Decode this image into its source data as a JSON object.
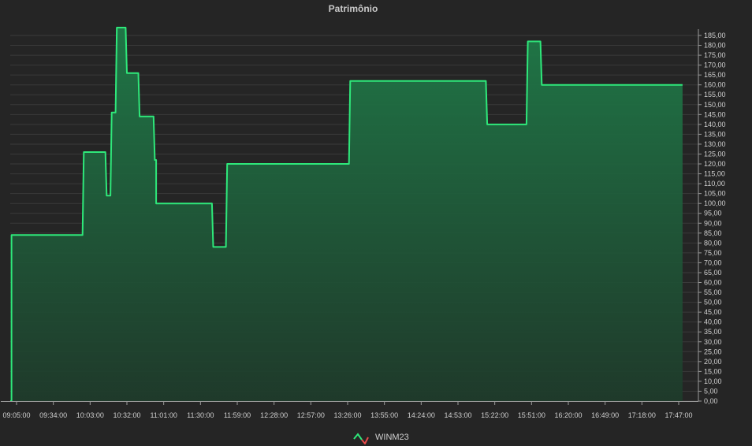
{
  "chart_data": {
    "type": "area",
    "title": "Patrimônio",
    "xlabel": "",
    "ylabel": "",
    "ylim": [
      0,
      185
    ],
    "y_ticks": [
      "0,00",
      "5,00",
      "10,00",
      "15,00",
      "20,00",
      "25,00",
      "30,00",
      "35,00",
      "40,00",
      "45,00",
      "50,00",
      "55,00",
      "60,00",
      "65,00",
      "70,00",
      "75,00",
      "80,00",
      "85,00",
      "90,00",
      "95,00",
      "100,00",
      "105,00",
      "110,00",
      "115,00",
      "120,00",
      "125,00",
      "130,00",
      "135,00",
      "140,00",
      "145,00",
      "150,00",
      "155,00",
      "160,00",
      "165,00",
      "170,00",
      "175,00",
      "180,00",
      "185,00"
    ],
    "x_ticks": [
      "09:05:00",
      "09:34:00",
      "10:03:00",
      "10:32:00",
      "11:01:00",
      "11:30:00",
      "11:59:00",
      "12:28:00",
      "12:57:00",
      "13:26:00",
      "13:55:00",
      "14:24:00",
      "14:53:00",
      "15:22:00",
      "15:51:00",
      "16:20:00",
      "16:49:00",
      "17:18:00",
      "17:47:00"
    ],
    "grid": true,
    "legend_position": "bottom-center",
    "series": [
      {
        "name": "WINM23",
        "color": "#2ee87a",
        "x": [
          "09:05:00",
          "09:06:00",
          "09:06:00",
          "10:02:00",
          "10:03:00",
          "10:20:00",
          "10:21:00",
          "10:24:00",
          "10:25:00",
          "10:28:00",
          "10:29:00",
          "10:36:00",
          "10:37:00",
          "10:46:00",
          "10:47:00",
          "10:58:00",
          "10:59:00",
          "11:00:00",
          "11:00:00",
          "11:44:00",
          "11:45:00",
          "11:55:00",
          "11:56:00",
          "13:32:00",
          "13:33:00",
          "15:20:00",
          "15:21:00",
          "15:52:00",
          "15:53:00",
          "16:03:00",
          "16:04:00",
          "17:55:00"
        ],
        "y": [
          0,
          0,
          84,
          84,
          126,
          126,
          104,
          104,
          146,
          146,
          189,
          189,
          166,
          166,
          144,
          144,
          122,
          122,
          100,
          100,
          78,
          78,
          120,
          120,
          162,
          162,
          140,
          140,
          182,
          182,
          160,
          160
        ]
      }
    ]
  }
}
